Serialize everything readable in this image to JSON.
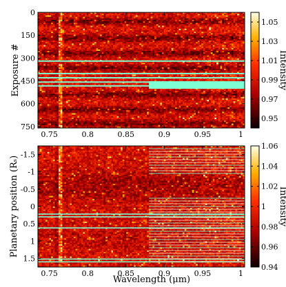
{
  "chart_data": [
    {
      "type": "heatmap",
      "xlabel": "",
      "ylabel": "Exposure #",
      "colorbar_label": "Intensity",
      "xlim": [
        0.735,
        1.005
      ],
      "ylim": [
        0,
        760
      ],
      "y_inverted": true,
      "xticks": [
        0.75,
        0.8,
        0.85,
        0.9,
        0.95,
        1
      ],
      "yticks": [
        0,
        150,
        300,
        450,
        600,
        750
      ],
      "colorbar_range": [
        0.94,
        1.06
      ],
      "colorbar_ticks": [
        0.95,
        0.97,
        0.99,
        1.01,
        1.03,
        1.05
      ],
      "colormap": "hot",
      "masked_color": "#7fffd4",
      "masked_region": {
        "x_from": 0.88,
        "x_to": 1.005,
        "y_from": 452,
        "y_to": 502
      },
      "masked_rows": [
        320,
        402,
        430,
        458,
        483
      ],
      "dark_bands_exposure": [
        60,
        170,
        270,
        365,
        540,
        640,
        730
      ]
    },
    {
      "type": "heatmap",
      "xlabel": "Wavelength (μm)",
      "ylabel": "Planetary position (Rₛ)",
      "colorbar_label": "Intensity",
      "xlim": [
        0.735,
        1.005
      ],
      "ylim": [
        -1.75,
        1.75
      ],
      "y_inverted": true,
      "xticks": [
        0.75,
        0.8,
        0.85,
        0.9,
        0.95,
        1
      ],
      "yticks": [
        -1.5,
        -1,
        -0.5,
        0,
        0.5,
        1,
        1.5
      ],
      "colorbar_range": [
        0.94,
        1.06
      ],
      "colorbar_ticks": [
        0.94,
        0.96,
        0.98,
        1,
        1.02,
        1.04,
        1.06
      ],
      "colormap": "hot",
      "masked_color": "#7fffd4",
      "masked_rows_full": [
        0.22,
        0.3,
        0.62,
        1.52,
        1.6
      ],
      "masked_rows_partial_from_x": 0.88
    }
  ],
  "tick_labels": {
    "top_x": [
      "0.75",
      "0.8",
      "0.85",
      "0.9",
      "0.95",
      "1"
    ],
    "top_y": [
      "0",
      "150",
      "300",
      "450",
      "600",
      "750"
    ],
    "top_cb": [
      "0.95",
      "0.97",
      "0.99",
      "1.01",
      "1.03",
      "1.05"
    ],
    "bottom_x": [
      "0.75",
      "0.8",
      "0.85",
      "0.9",
      "0.95",
      "1"
    ],
    "bottom_y": [
      "-1.5",
      "-1",
      "-0.5",
      "0",
      "0.5",
      "1",
      "1.5"
    ],
    "bottom_cb": [
      "0.94",
      "0.96",
      "0.98",
      "1",
      "1.02",
      "1.04",
      "1.06"
    ]
  }
}
